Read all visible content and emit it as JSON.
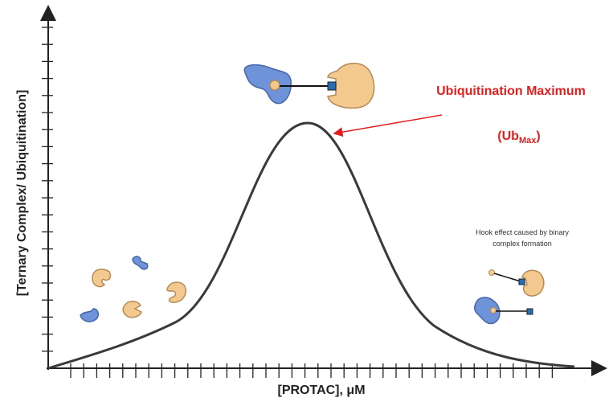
{
  "y_axis_label": "[Ternary Complex/ Ubiquitination]",
  "x_axis_label": "[PROTAC], μM",
  "annotation": {
    "title": "Ubiquitination Maximum",
    "abbreviation": {
      "prefix": "(Ub",
      "subscript": "Max",
      "suffix": ")"
    }
  },
  "hook_note": {
    "lines": [
      "Hook effect caused by binary",
      "complex formation"
    ]
  }
}
